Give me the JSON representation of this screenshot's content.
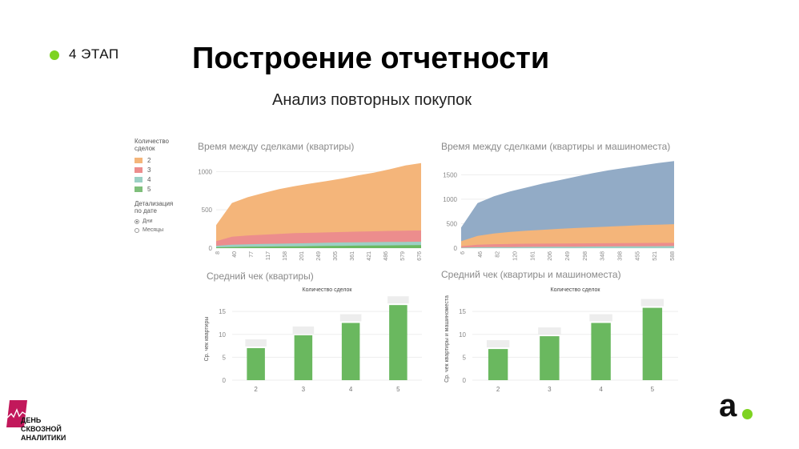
{
  "slide": {
    "stage_label": "4 ЭТАП",
    "title": "Построение отчетности",
    "subtitle": "Анализ повторных покупок"
  },
  "legend": {
    "title_line1": "Количество",
    "title_line2": "сделок",
    "items": [
      {
        "label": "2",
        "color": "#f4b57a"
      },
      {
        "label": "3",
        "color": "#ec8d8d"
      },
      {
        "label": "4",
        "color": "#9bd0c4"
      },
      {
        "label": "5",
        "color": "#7fbf7b"
      }
    ],
    "detail_title_line1": "Детализация",
    "detail_title_line2": "по дате",
    "detail_options": [
      {
        "label": "Дни",
        "selected": true
      },
      {
        "label": "Месяцы",
        "selected": false
      }
    ]
  },
  "colors": {
    "accent_green": "#7ed321",
    "bar_green": "#6ab85f",
    "area_blue": "#92abc6",
    "area_orange": "#f4b57a",
    "area_red": "#ec8d8d",
    "area_teal": "#9bd0c4"
  },
  "chart_data": [
    {
      "type": "area",
      "title": "Время между сделками (квартиры)",
      "x_ticks": [
        "8",
        "40",
        "77",
        "117",
        "158",
        "201",
        "249",
        "305",
        "361",
        "421",
        "486",
        "579",
        "676"
      ],
      "ylim": [
        0,
        1150
      ],
      "y_ticks": [
        0,
        500,
        1000
      ],
      "series": [
        {
          "name": "2",
          "values": [
            300,
            590,
            665,
            720,
            770,
            810,
            845,
            875,
            910,
            950,
            985,
            1030,
            1080,
            1110
          ]
        },
        {
          "name": "3",
          "values": [
            90,
            150,
            165,
            175,
            185,
            195,
            200,
            205,
            210,
            215,
            220,
            225,
            228,
            230
          ]
        },
        {
          "name": "4",
          "values": [
            30,
            45,
            50,
            55,
            58,
            62,
            66,
            70,
            74,
            76,
            78,
            80,
            82,
            84
          ]
        },
        {
          "name": "5",
          "values": [
            10,
            15,
            18,
            20,
            22,
            24,
            26,
            28,
            30,
            32,
            34,
            36,
            38,
            40
          ]
        }
      ]
    },
    {
      "type": "area",
      "title": "Время между сделками (квартиры и машиноместа)",
      "x_ticks": [
        "6",
        "46",
        "82",
        "120",
        "161",
        "206",
        "249",
        "298",
        "348",
        "398",
        "455",
        "521",
        "588"
      ],
      "ylim": [
        0,
        1800
      ],
      "y_ticks": [
        0,
        500,
        1000,
        1500
      ],
      "series": [
        {
          "name": "2",
          "values": [
            420,
            920,
            1060,
            1160,
            1240,
            1320,
            1390,
            1460,
            1530,
            1590,
            1640,
            1690,
            1740,
            1780
          ]
        },
        {
          "name": "3",
          "values": [
            140,
            250,
            300,
            330,
            355,
            375,
            395,
            410,
            425,
            440,
            455,
            470,
            480,
            490
          ]
        },
        {
          "name": "4",
          "values": [
            40,
            70,
            80,
            85,
            90,
            92,
            94,
            96,
            98,
            100,
            102,
            104,
            106,
            108
          ]
        },
        {
          "name": "5",
          "values": [
            10,
            18,
            20,
            22,
            24,
            26,
            28,
            30,
            32,
            34,
            36,
            38,
            40,
            42
          ]
        }
      ]
    },
    {
      "type": "bar",
      "title": "Средний чек (квартиры)",
      "subtitle": "Количество сделок",
      "ylabel": "Ср. чек квартиры",
      "categories": [
        "2",
        "3",
        "4",
        "5"
      ],
      "values": [
        7.0,
        9.8,
        12.5,
        16.4
      ],
      "ylim": [
        0,
        18
      ],
      "y_ticks": [
        0,
        5,
        10,
        15
      ]
    },
    {
      "type": "bar",
      "title": "Средний чек (квартиры и машиноместа)",
      "subtitle": "Количество сделок",
      "ylabel": "Ср. чек квартиры и машиноместа",
      "categories": [
        "2",
        "3",
        "4",
        "5"
      ],
      "values": [
        6.8,
        9.6,
        12.5,
        15.8
      ],
      "ylim": [
        0,
        18
      ],
      "y_ticks": [
        0,
        5,
        10,
        15
      ]
    }
  ],
  "branding": {
    "event_line1": "ДЕНЬ",
    "event_line2": "СКВОЗНОЙ",
    "event_line3": "АНАЛИТИКИ",
    "company_letter": "a"
  }
}
